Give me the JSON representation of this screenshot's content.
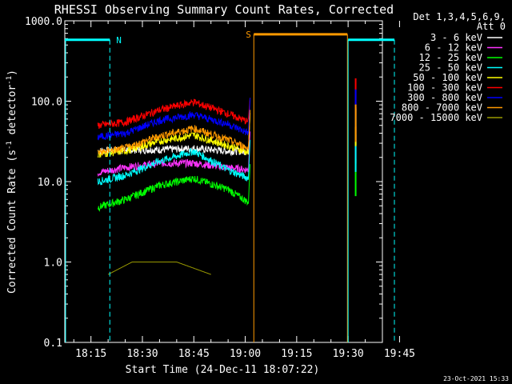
{
  "chart_data": {
    "type": "line",
    "title": "RHESSI Observing Summary Count Rates, Corrected",
    "xlabel": "Start Time (24-Dec-11 18:07:22)",
    "ylabel_main": "Corrected Count Rate (s",
    "ylabel_sup": "-1",
    "ylabel_mid": " detector",
    "ylabel_end": ")",
    "yscale": "log",
    "ylim": [
      0.1,
      1000
    ],
    "xlim_min": [
      7.37,
      100
    ],
    "x_ticks": [
      {
        "m": 15,
        "label": "18:15"
      },
      {
        "m": 30,
        "label": "18:30"
      },
      {
        "m": 45,
        "label": "18:45"
      },
      {
        "m": 60,
        "label": "19:00"
      },
      {
        "m": 75,
        "label": "19:15"
      },
      {
        "m": 90,
        "label": "19:30"
      },
      {
        "m": 105,
        "label": "19:45"
      }
    ],
    "y_ticks": [
      {
        "v": 0.1,
        "label": "0.1"
      },
      {
        "v": 1,
        "label": "1.0"
      },
      {
        "v": 10,
        "label": "10.0"
      },
      {
        "v": 100,
        "label": "100.0"
      },
      {
        "v": 1000,
        "label": "1000.0"
      }
    ],
    "legend_header": [
      "Det 1,3,4,5,6,9,",
      "Att 0"
    ],
    "series": [
      {
        "name": "3 - 6 keV",
        "color": "#ffffff",
        "x": [
          17,
          25,
          35,
          45,
          55,
          61
        ],
        "values": [
          24,
          25,
          25,
          26,
          24,
          24
        ]
      },
      {
        "name": "6 - 12 keV",
        "color": "#ff33ff",
        "x": [
          17,
          25,
          35,
          45,
          55,
          61
        ],
        "values": [
          13,
          15,
          17,
          17,
          15,
          14
        ]
      },
      {
        "name": "12 - 25 keV",
        "color": "#00ff00",
        "x": [
          17,
          25,
          35,
          45,
          55,
          61
        ],
        "values": [
          4.8,
          6,
          9,
          11,
          8,
          5.5
        ]
      },
      {
        "name": "25 - 50 keV",
        "color": "#00ffff",
        "x": [
          17,
          25,
          35,
          45,
          55,
          61
        ],
        "values": [
          10,
          12,
          18,
          24,
          14,
          11
        ]
      },
      {
        "name": "50 - 100 keV",
        "color": "#ffff00",
        "x": [
          17,
          25,
          35,
          45,
          55,
          61
        ],
        "values": [
          22,
          24,
          32,
          38,
          28,
          23
        ]
      },
      {
        "name": "100 - 300 keV",
        "color": "#ff0000",
        "x": [
          17,
          25,
          35,
          45,
          55,
          61
        ],
        "values": [
          50,
          55,
          78,
          98,
          70,
          55
        ]
      },
      {
        "name": "300 - 800 keV",
        "color": "#0000ff",
        "x": [
          17,
          25,
          35,
          45,
          55,
          61
        ],
        "values": [
          36,
          40,
          58,
          68,
          52,
          40
        ]
      },
      {
        "name": "800 - 7000 keV",
        "color": "#ff9900",
        "x": [
          17,
          25,
          35,
          45,
          55,
          61
        ],
        "values": [
          23,
          26,
          37,
          46,
          33,
          26
        ]
      },
      {
        "name": "7000 - 15000 keV",
        "color": "#999900",
        "x": [
          20,
          27,
          32,
          40,
          50
        ],
        "values": [
          0.7,
          1.0,
          1.0,
          1.0,
          0.7
        ]
      }
    ],
    "flags": [
      {
        "label": "N",
        "color": "#00ffff",
        "level": 580,
        "x_start": 7.37,
        "x_end": 20.5
      },
      {
        "label": "S",
        "color": "#ff9900",
        "level": 680,
        "x_start": 62.5,
        "x_end": 89.8
      }
    ],
    "flag_n_after": {
      "x_start": 90,
      "x_end": 103.5,
      "level": 580
    },
    "timestamp": "23-Oct-2021 15:33"
  }
}
